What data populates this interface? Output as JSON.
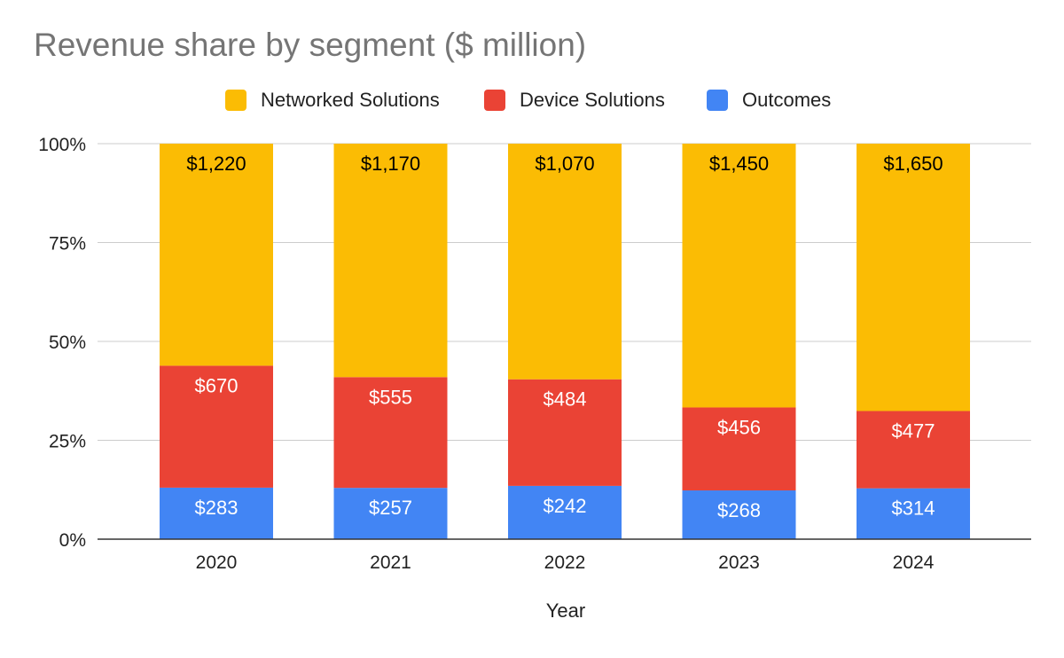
{
  "chart_data": {
    "type": "bar",
    "stacked": "percent",
    "title": "Revenue share by segment ($ million)",
    "xlabel": "Year",
    "ylabel": "",
    "ylim": [
      0,
      1
    ],
    "yticks": [
      "0%",
      "25%",
      "50%",
      "75%",
      "100%"
    ],
    "legend_position": "top",
    "categories": [
      "2020",
      "2021",
      "2022",
      "2023",
      "2024"
    ],
    "series": [
      {
        "name": "Outcomes",
        "color": "#4285f4",
        "label_color": "#ffffff",
        "values": [
          283,
          257,
          242,
          268,
          314
        ],
        "labels": [
          "$283",
          "$257",
          "$242",
          "$268",
          "$314"
        ]
      },
      {
        "name": "Device Solutions",
        "color": "#ea4335",
        "label_color": "#ffffff",
        "values": [
          670,
          555,
          484,
          456,
          477
        ],
        "labels": [
          "$670",
          "$555",
          "$484",
          "$456",
          "$477"
        ]
      },
      {
        "name": "Networked Solutions",
        "color": "#fbbc04",
        "label_color": "#000000",
        "values": [
          1220,
          1170,
          1070,
          1450,
          1650
        ],
        "labels": [
          "$1,220",
          "$1,170",
          "$1,070",
          "$1,450",
          "$1,650"
        ]
      }
    ],
    "legend_order": [
      "Networked Solutions",
      "Device Solutions",
      "Outcomes"
    ],
    "grid": true
  }
}
